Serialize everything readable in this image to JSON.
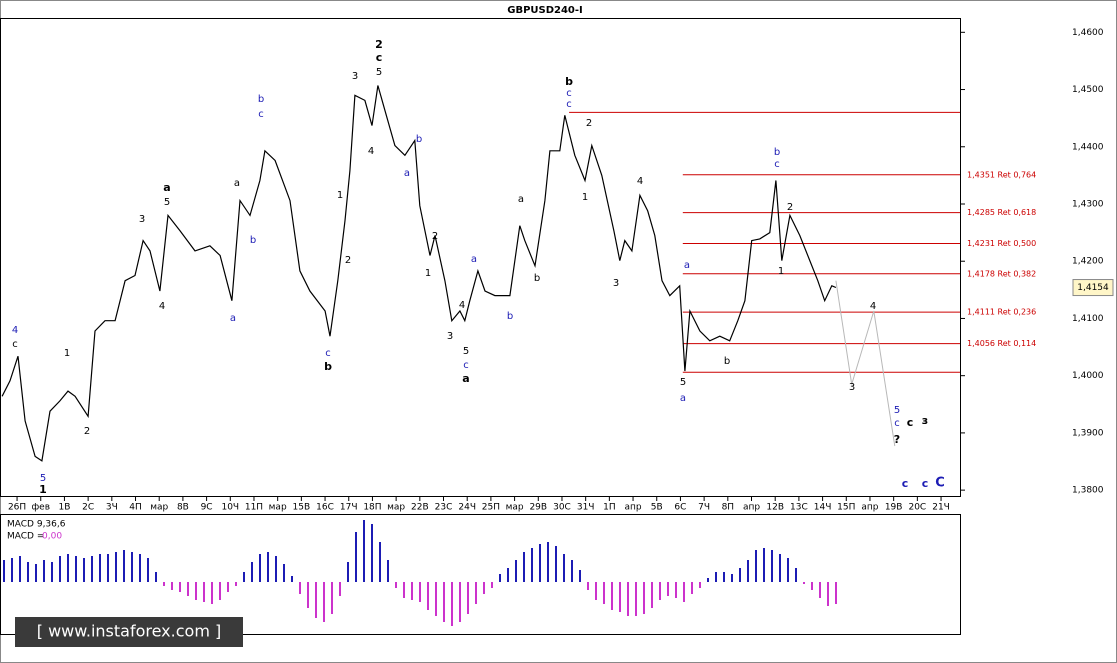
{
  "chart_data": {
    "type": "line",
    "title": "GBPUSD240-I",
    "xlim": [
      -0.72,
      39.8
    ],
    "ylim": [
      1.3788,
      1.4625
    ],
    "xticks": [
      {
        "value": 0,
        "label": "26П"
      },
      {
        "value": 1,
        "label": "фев"
      },
      {
        "value": 2,
        "label": "1В"
      },
      {
        "value": 3,
        "label": "2С"
      },
      {
        "value": 4,
        "label": "3Ч"
      },
      {
        "value": 5,
        "label": "4П"
      },
      {
        "value": 6,
        "label": "мар"
      },
      {
        "value": 7,
        "label": "8В"
      },
      {
        "value": 8,
        "label": "9С"
      },
      {
        "value": 9,
        "label": "10Ч"
      },
      {
        "value": 10,
        "label": "11П"
      },
      {
        "value": 11,
        "label": "мар"
      },
      {
        "value": 12,
        "label": "15В"
      },
      {
        "value": 13,
        "label": "16С"
      },
      {
        "value": 14,
        "label": "17Ч"
      },
      {
        "value": 15,
        "label": "18П"
      },
      {
        "value": 16,
        "label": "мар"
      },
      {
        "value": 17,
        "label": "22В"
      },
      {
        "value": 18,
        "label": "23С"
      },
      {
        "value": 19,
        "label": "24Ч"
      },
      {
        "value": 20,
        "label": "25П"
      },
      {
        "value": 21,
        "label": "мар"
      },
      {
        "value": 22,
        "label": "29В"
      },
      {
        "value": 23,
        "label": "30С"
      },
      {
        "value": 24,
        "label": "31Ч"
      },
      {
        "value": 25,
        "label": "1П"
      },
      {
        "value": 26,
        "label": "апр"
      },
      {
        "value": 27,
        "label": "5В"
      },
      {
        "value": 28,
        "label": "6С"
      },
      {
        "value": 29,
        "label": "7Ч"
      },
      {
        "value": 30,
        "label": "8П"
      },
      {
        "value": 31,
        "label": "апр"
      },
      {
        "value": 32,
        "label": "12В"
      },
      {
        "value": 33,
        "label": "13С"
      },
      {
        "value": 34,
        "label": "14Ч"
      },
      {
        "value": 35,
        "label": "15П"
      },
      {
        "value": 36,
        "label": "апр"
      },
      {
        "value": 37,
        "label": "19В"
      },
      {
        "value": 38,
        "label": "20С"
      },
      {
        "value": 39,
        "label": "21Ч"
      }
    ],
    "yticks": [
      {
        "value": 1.46,
        "label": "1,4600"
      },
      {
        "value": 1.45,
        "label": "1,4500"
      },
      {
        "value": 1.44,
        "label": "1,4400"
      },
      {
        "value": 1.43,
        "label": "1,4300"
      },
      {
        "value": 1.42,
        "label": "1,4200"
      },
      {
        "value": 1.41,
        "label": "1,4100"
      },
      {
        "value": 1.4,
        "label": "1,4000"
      },
      {
        "value": 1.39,
        "label": "1,3900"
      },
      {
        "value": 1.38,
        "label": "1,3800"
      }
    ],
    "series": [
      {
        "name": "GBPUSD240-I",
        "color": "#000000",
        "x": [
          -0.63,
          -0.3,
          0.04,
          0.34,
          0.76,
          1.05,
          1.39,
          1.81,
          2.15,
          2.45,
          3.0,
          3.29,
          3.71,
          4.14,
          4.56,
          4.98,
          5.32,
          5.61,
          6.03,
          6.37,
          6.88,
          7.51,
          8.14,
          8.57,
          9.07,
          9.41,
          9.83,
          10.25,
          10.46,
          10.89,
          11.52,
          11.94,
          12.36,
          13.0,
          13.21,
          13.54,
          13.84,
          14.05,
          14.26,
          14.68,
          14.98,
          15.23,
          15.53,
          15.95,
          16.37,
          16.79,
          17.0,
          17.43,
          17.64,
          18.06,
          18.35,
          18.69,
          18.9,
          19.11,
          19.45,
          19.75,
          20.17,
          20.8,
          21.22,
          21.43,
          21.86,
          22.28,
          22.49,
          22.91,
          23.12,
          23.54,
          23.97,
          24.26,
          24.68,
          25.19,
          25.44,
          25.65,
          25.95,
          26.29,
          26.62,
          26.92,
          27.22,
          27.55,
          27.97,
          28.19,
          28.4,
          28.82,
          29.24,
          29.66,
          30.08,
          30.42,
          30.72,
          31.01,
          31.35,
          31.77,
          32.03,
          32.28,
          32.62,
          33.04,
          33.46,
          33.8,
          34.09,
          34.39,
          34.56
        ],
        "values": [
          1.3964,
          1.3991,
          1.4034,
          1.3921,
          1.3859,
          1.3851,
          1.3938,
          1.3956,
          1.3973,
          1.3964,
          1.3929,
          1.4078,
          1.4096,
          1.4096,
          1.4166,
          1.4175,
          1.4236,
          1.4218,
          1.4148,
          1.428,
          1.4253,
          1.4218,
          1.4227,
          1.421,
          1.4131,
          1.4306,
          1.428,
          1.4341,
          1.4393,
          1.4376,
          1.4306,
          1.4183,
          1.4148,
          1.4113,
          1.4069,
          1.4166,
          1.4271,
          1.4358,
          1.449,
          1.4481,
          1.4437,
          1.4507,
          1.4463,
          1.4402,
          1.4385,
          1.4411,
          1.4297,
          1.421,
          1.4245,
          1.4166,
          1.4096,
          1.4113,
          1.4096,
          1.4131,
          1.4183,
          1.4148,
          1.414,
          1.414,
          1.4262,
          1.4236,
          1.4192,
          1.4306,
          1.4393,
          1.4393,
          1.4455,
          1.4385,
          1.4341,
          1.4402,
          1.435,
          1.4253,
          1.4201,
          1.4236,
          1.4218,
          1.4315,
          1.4288,
          1.4245,
          1.4166,
          1.414,
          1.4157,
          1.4008,
          1.4113,
          1.4078,
          1.4061,
          1.4069,
          1.4061,
          1.4096,
          1.4131,
          1.4236,
          1.4239,
          1.425,
          1.4341,
          1.4201,
          1.428,
          1.4245,
          1.4201,
          1.4166,
          1.4131,
          1.4157,
          1.4154
        ]
      },
      {
        "name": "forecast",
        "color": "#b8b8b8",
        "x": [
          34.56,
          35.23,
          36.16,
          37.05
        ],
        "values": [
          1.4166,
          1.3985,
          1.4113,
          1.3877
        ]
      }
    ],
    "current_price": {
      "value": 1.4154,
      "label": "1,4154"
    },
    "level_color": "#cc0000",
    "fib_start_x": 28.1,
    "levels": [
      {
        "value": 1.4351,
        "label": "1,4351 Ret 0,764"
      },
      {
        "value": 1.4285,
        "label": "1,4285 Ret 0,618"
      },
      {
        "value": 1.4231,
        "label": "1,4231 Ret 0,500"
      },
      {
        "value": 1.4178,
        "label": "1,4178 Ret 0,382"
      },
      {
        "value": 1.4111,
        "label": "1,4111 Ret 0,236"
      },
      {
        "value": 1.4056,
        "label": "1,4056 Ret 0,114"
      }
    ],
    "lines": [
      {
        "value": 1.446,
        "start": 23.3
      },
      {
        "value": 1.4006,
        "start": 28.1
      }
    ],
    "wave_labels": [
      {
        "text": "4",
        "color": "#1c1cb4"
      },
      {
        "text": "c",
        "color": "#000000"
      },
      {
        "text": "5",
        "color": "#1c1cb4"
      },
      {
        "text": "1",
        "color": "#000000"
      },
      {
        "text": "1",
        "color": "#000000"
      },
      {
        "text": "2",
        "color": "#000000"
      },
      {
        "text": "3",
        "color": "#000000"
      },
      {
        "text": "4",
        "color": "#000000"
      },
      {
        "text": "a",
        "color": "#000000"
      },
      {
        "text": "5",
        "color": "#000000"
      },
      {
        "text": "a",
        "color": "#1c1cb4"
      },
      {
        "text": "a",
        "color": "#000000"
      },
      {
        "text": "b",
        "color": "#1c1cb4"
      },
      {
        "text": "b",
        "color": "#1c1cb4"
      },
      {
        "text": "c",
        "color": "#1c1cb4"
      },
      {
        "text": "1",
        "color": "#000000"
      },
      {
        "text": "2",
        "color": "#000000"
      },
      {
        "text": "c",
        "color": "#1c1cb4"
      },
      {
        "text": "b",
        "color": "#000000"
      },
      {
        "text": "3",
        "color": "#000000"
      },
      {
        "text": "2",
        "color": "#000000"
      },
      {
        "text": "c",
        "color": "#000000"
      },
      {
        "text": "5",
        "color": "#000000"
      },
      {
        "text": "4",
        "color": "#000000"
      },
      {
        "text": "b",
        "color": "#1c1cb4"
      },
      {
        "text": "a",
        "color": "#1c1cb4"
      },
      {
        "text": "2",
        "color": "#000000"
      },
      {
        "text": "1",
        "color": "#000000"
      },
      {
        "text": "4",
        "color": "#000000"
      },
      {
        "text": "3",
        "color": "#000000"
      },
      {
        "text": "5",
        "color": "#000000"
      },
      {
        "text": "c",
        "color": "#1c1cb4"
      },
      {
        "text": "a",
        "color": "#000000"
      },
      {
        "text": "a",
        "color": "#1c1cb4"
      },
      {
        "text": "b",
        "color": "#1c1cb4"
      },
      {
        "text": "a",
        "color": "#000000"
      },
      {
        "text": "b",
        "color": "#000000"
      },
      {
        "text": "b",
        "color": "#000000"
      },
      {
        "text": "c",
        "color": "#1c1cb4"
      },
      {
        "text": "c",
        "color": "#1c1cb4"
      },
      {
        "text": "2",
        "color": "#000000"
      },
      {
        "text": "1",
        "color": "#000000"
      },
      {
        "text": "4",
        "color": "#000000"
      },
      {
        "text": "3",
        "color": "#000000"
      },
      {
        "text": "a",
        "color": "#1c1cb4"
      },
      {
        "text": "5",
        "color": "#000000"
      },
      {
        "text": "a",
        "color": "#1c1cb4"
      },
      {
        "text": "b",
        "color": "#000000"
      },
      {
        "text": "b",
        "color": "#1c1cb4"
      },
      {
        "text": "c",
        "color": "#1c1cb4"
      },
      {
        "text": "1",
        "color": "#000000"
      },
      {
        "text": "2",
        "color": "#000000"
      },
      {
        "text": "4",
        "color": "#000000"
      },
      {
        "text": "3",
        "color": "#000000"
      },
      {
        "text": "5",
        "color": "#1c1cb4"
      },
      {
        "text": "c",
        "color": "#1c1cb4"
      },
      {
        "text": "c",
        "color": "#000000"
      },
      {
        "text": "з",
        "color": "#000000"
      },
      {
        "text": "?",
        "color": "#000000"
      },
      {
        "text": "c",
        "color": "#1c1cb4"
      },
      {
        "text": "c",
        "color": "#1c1cb4"
      },
      {
        "text": "C",
        "color": "#1c1cb4"
      }
    ],
    "macd": {
      "title": "MACD 9,36,6",
      "value_title": "MACD =",
      "value_text": "0,00",
      "value_color": "#cc33cc",
      "pos_color": "#1c1cb4",
      "neg_color": "#cc33cc",
      "ylim": [
        -0.00053,
        0.00067
      ],
      "values": [
        0.00022,
        0.00024,
        0.00026,
        0.0002,
        0.00018,
        0.00022,
        0.0002,
        0.00026,
        0.00028,
        0.00026,
        0.00024,
        0.00026,
        0.00028,
        0.00028,
        0.0003,
        0.00032,
        0.0003,
        0.00028,
        0.00024,
        0.0001,
        -4e-05,
        -8e-05,
        -0.0001,
        -0.00014,
        -0.00018,
        -0.0002,
        -0.00022,
        -0.00018,
        -0.0001,
        -4e-05,
        0.0001,
        0.0002,
        0.00028,
        0.0003,
        0.00026,
        0.00018,
        6e-05,
        -0.00012,
        -0.00026,
        -0.00036,
        -0.0004,
        -0.00032,
        -0.00014,
        0.0002,
        0.0005,
        0.00062,
        0.00058,
        0.0004,
        0.00022,
        -6e-05,
        -0.00016,
        -0.00018,
        -0.0002,
        -0.00028,
        -0.00034,
        -0.0004,
        -0.00044,
        -0.0004,
        -0.00032,
        -0.00022,
        -0.00012,
        -6e-05,
        8e-05,
        0.00014,
        0.00022,
        0.0003,
        0.00034,
        0.00038,
        0.0004,
        0.00036,
        0.00028,
        0.00022,
        0.00012,
        -8e-05,
        -0.00018,
        -0.00022,
        -0.00028,
        -0.0003,
        -0.00034,
        -0.00034,
        -0.00032,
        -0.00026,
        -0.00018,
        -0.00014,
        -0.00016,
        -0.0002,
        -0.00012,
        -6e-05,
        4e-05,
        0.0001,
        0.0001,
        8e-05,
        0.00014,
        0.00022,
        0.00032,
        0.00034,
        0.00032,
        0.00028,
        0.00024,
        0.00014,
        -2e-05,
        -8e-05,
        -0.00016,
        -0.00024,
        -0.00022
      ]
    },
    "watermark": "[ www.instaforex.com ]"
  }
}
